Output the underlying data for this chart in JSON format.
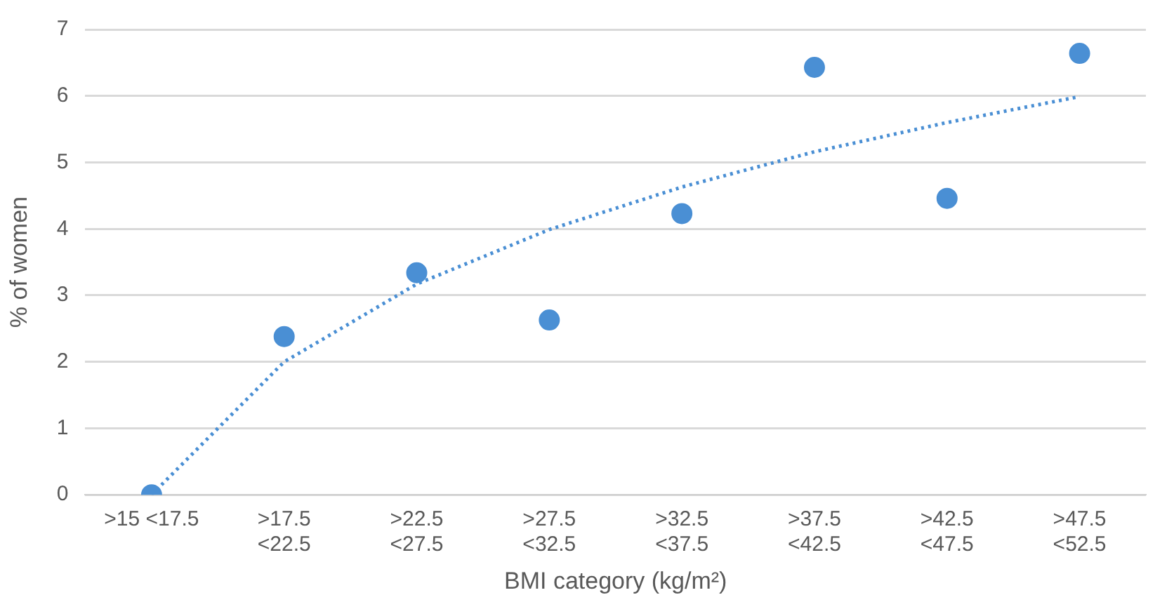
{
  "chart_data": {
    "type": "scatter",
    "xlabel": "BMI category (kg/m²)",
    "ylabel": "% of women",
    "categories": [
      ">15 <17.5",
      ">17.5\n<22.5",
      ">22.5\n<27.5",
      ">27.5\n<32.5",
      ">32.5\n<37.5",
      ">37.5\n<42.5",
      ">42.5\n<47.5",
      ">47.5\n<52.5"
    ],
    "series": [
      {
        "type": "scatter",
        "color": "#4a8fd4",
        "values": [
          0,
          2.38,
          3.34,
          2.63,
          4.23,
          6.43,
          4.46,
          6.64
        ]
      },
      {
        "type": "line",
        "color": "#4a8fd4",
        "line_style": "dotted",
        "marker": "none",
        "values": [
          0,
          2.0,
          3.17,
          3.99,
          4.63,
          5.16,
          5.6,
          5.99
        ]
      }
    ],
    "ylim": [
      0,
      7
    ],
    "yticks": [
      0,
      1,
      2,
      3,
      4,
      5,
      6,
      7
    ],
    "grid": "y",
    "legend": false,
    "marker": "circle"
  }
}
